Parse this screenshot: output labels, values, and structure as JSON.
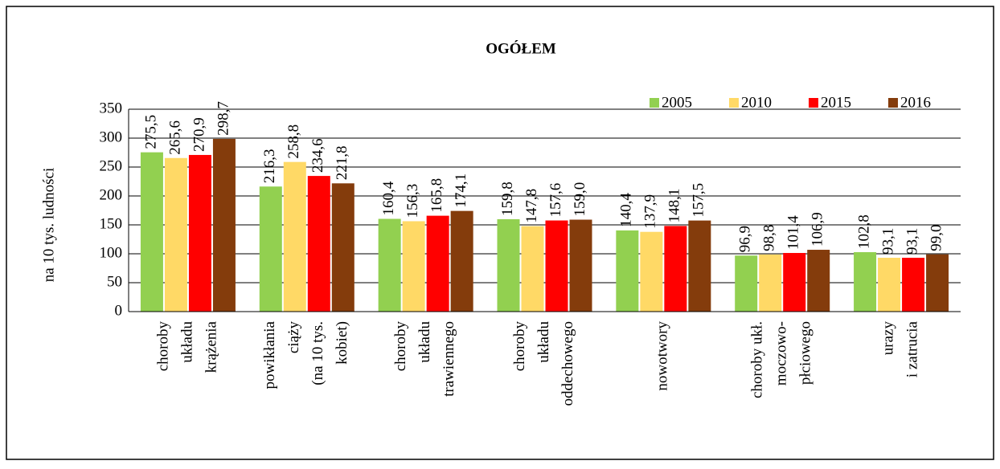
{
  "chart_data": {
    "type": "bar",
    "title": "OGÓŁEM",
    "y_label": "na 10 tys. ludności",
    "categories": [
      [
        "choroby",
        "układu",
        "krążenia"
      ],
      [
        "powikłania",
        "ciąży",
        "(na 10 tys.",
        "kobiet)"
      ],
      [
        "choroby",
        "układu",
        "trawiennego"
      ],
      [
        "choroby",
        "układu",
        "oddechowego"
      ],
      [
        "nowotwory"
      ],
      [
        "choroby ukł.",
        "moczowo-",
        "płciowego"
      ],
      [
        "urazy",
        "i zatrucia"
      ]
    ],
    "series": [
      {
        "name": "2005",
        "color": "#92d050",
        "values": [
          275.5,
          216.3,
          160.4,
          159.8,
          140.4,
          96.9,
          102.8
        ],
        "value_labels": [
          "275,5",
          "216,3",
          "160,4",
          "159,8",
          "140,4",
          "96,9",
          "102,8"
        ]
      },
      {
        "name": "2010",
        "color": "#ffd966",
        "values": [
          265.6,
          258.8,
          156.3,
          147.8,
          137.9,
          98.8,
          93.1
        ],
        "value_labels": [
          "265,6",
          "258,8",
          "156,3",
          "147,8",
          "137,9",
          "98,8",
          "93,1"
        ]
      },
      {
        "name": "2015",
        "color": "#ff0000",
        "values": [
          270.9,
          234.6,
          165.8,
          157.6,
          148.1,
          101.4,
          93.1
        ],
        "value_labels": [
          "270,9",
          "234,6",
          "165,8",
          "157,6",
          "148,1",
          "101,4",
          "93,1"
        ]
      },
      {
        "name": "2016",
        "color": "#843c0c",
        "values": [
          298.7,
          221.8,
          174.1,
          159.0,
          157.5,
          106.9,
          99.0
        ],
        "value_labels": [
          "298,7",
          "221,8",
          "174,1",
          "159,0",
          "157,5",
          "106,9",
          "99,0"
        ]
      }
    ],
    "ylim": [
      0,
      350
    ],
    "yticks": [
      0,
      50,
      100,
      150,
      200,
      250,
      300,
      350
    ],
    "grid": true,
    "legend": "top-right"
  }
}
